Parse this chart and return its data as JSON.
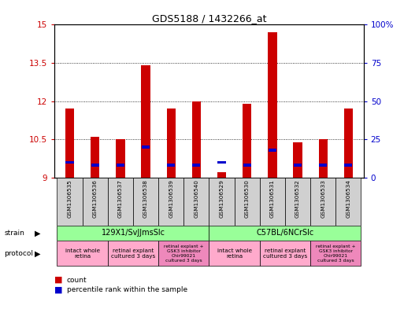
{
  "title": "GDS5188 / 1432266_at",
  "samples": [
    "GSM1306535",
    "GSM1306536",
    "GSM1306537",
    "GSM1306538",
    "GSM1306539",
    "GSM1306540",
    "GSM1306529",
    "GSM1306530",
    "GSM1306531",
    "GSM1306532",
    "GSM1306533",
    "GSM1306534"
  ],
  "count_values": [
    11.7,
    10.6,
    10.5,
    13.4,
    11.7,
    12.0,
    9.2,
    11.9,
    14.7,
    10.4,
    10.5,
    11.7
  ],
  "percentile_values": [
    10,
    8,
    8,
    20,
    8,
    8,
    10,
    8,
    18,
    8,
    8,
    8
  ],
  "ymin": 9,
  "ymax": 15,
  "yticks": [
    9,
    10.5,
    12,
    13.5,
    15
  ],
  "ytick_labels": [
    "9",
    "10.5",
    "12",
    "13.5",
    "15"
  ],
  "bar_color": "#cc0000",
  "percentile_color": "#0000cc",
  "bar_base": 9.0,
  "strain_labels": [
    "129X1/SvJJmsSlc",
    "C57BL/6NCrSlc"
  ],
  "strain_color": "#99ff99",
  "protocol_color_light": "#ffaacc",
  "protocol_color_dark": "#ee88bb",
  "background_color": "#ffffff",
  "label_color_left": "#cc0000",
  "label_color_right": "#0000cc",
  "gray_box": "#d0d0d0"
}
